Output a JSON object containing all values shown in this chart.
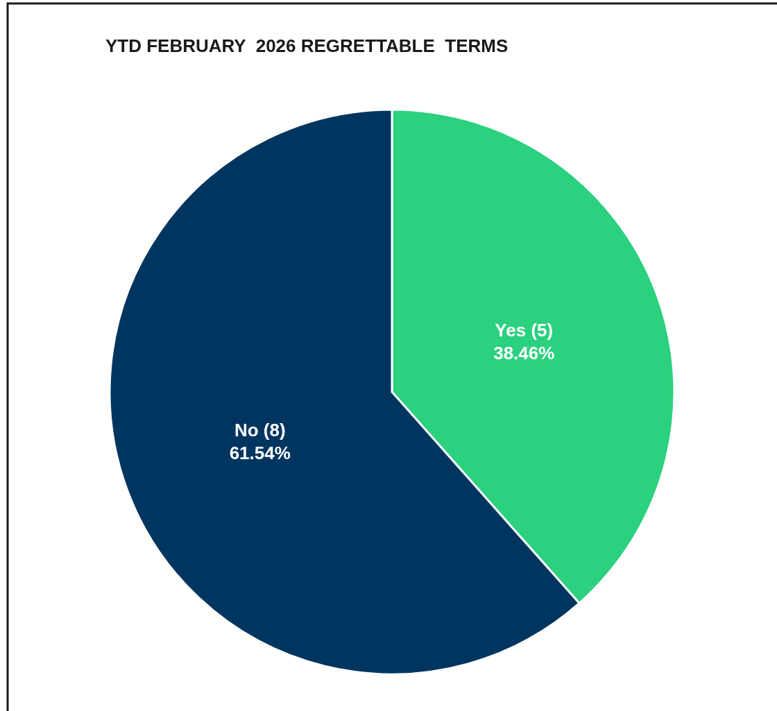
{
  "chart_data": {
    "type": "pie",
    "title": "YTD FEBRUARY  2026 REGRETTABLE  TERMS",
    "categories": [
      "Yes (5)",
      "No (8)"
    ],
    "values": [
      38.46,
      61.54
    ],
    "colors": [
      "#2bd17e",
      "#003560"
    ],
    "value_labels": [
      "38.46%",
      "61.54%"
    ]
  }
}
